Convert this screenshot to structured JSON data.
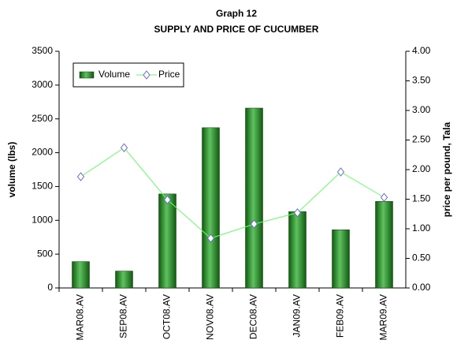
{
  "chart_data": {
    "type": "bar",
    "title": "Graph 12",
    "subtitle": "SUPPLY AND PRICE OF CUCUMBER",
    "y_label": "volume (lbs)",
    "y2_label": "price per pound, Tala",
    "categories": [
      "MAR08.AV",
      "SEP08.AV",
      "OCT08.AV",
      "NOV08.AV",
      "DEC08.AV",
      "JAN09.AV",
      "FEB09.AV",
      "MAR09.AV"
    ],
    "series": [
      {
        "name": "Volume",
        "type": "bar",
        "color": "#2e8b2e",
        "values": [
          390,
          250,
          1390,
          2370,
          2660,
          1130,
          860,
          1280
        ]
      },
      {
        "name": "Price",
        "type": "line",
        "axis": "y2",
        "color": "#66ff66",
        "marker_color": "#6666cc",
        "values": [
          1.88,
          2.37,
          1.49,
          0.84,
          1.08,
          1.27,
          1.96,
          1.53
        ]
      }
    ],
    "ylim": [
      0,
      3500
    ],
    "yticks": [
      0,
      500,
      1000,
      1500,
      2000,
      2500,
      3000,
      3500
    ],
    "y2lim": [
      0,
      4
    ],
    "y2ticks": [
      {
        "value": 0,
        "label": "0.00"
      },
      {
        "value": 0.5,
        "label": "0.50"
      },
      {
        "value": 1,
        "label": "1.00"
      },
      {
        "value": 1.5,
        "label": "1.50"
      },
      {
        "value": 2,
        "label": "2.00"
      },
      {
        "value": 2.5,
        "label": "2.50"
      },
      {
        "value": 3,
        "label": "3.00"
      },
      {
        "value": 3.5,
        "label": "3.50"
      },
      {
        "value": 4,
        "label": "4.00"
      }
    ],
    "legend": "top-left"
  }
}
